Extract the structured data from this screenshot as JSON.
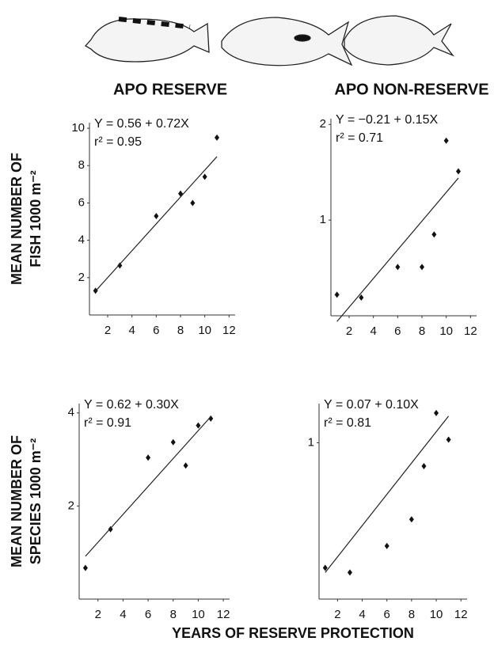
{
  "x_label": "YEARS OF RESERVE PROTECTION",
  "chart_data": [
    {
      "type": "scatter",
      "title": "APO RESERVE",
      "y_label": [
        "MEAN NUMBER OF",
        "FISH  1000 m⁻²"
      ],
      "equation": "Y = 0.56 + 0.72X",
      "r2": "r² = 0.95",
      "fit": {
        "intercept": 0.56,
        "slope": 0.72
      },
      "x": [
        1,
        3,
        6,
        8,
        9,
        10,
        11
      ],
      "values": [
        1.3,
        2.65,
        5.3,
        6.5,
        6.0,
        7.4,
        9.5
      ],
      "color": "#111111",
      "xlim": [
        0.5,
        12.5
      ],
      "ylim": [
        0,
        10.3
      ],
      "xticks": [
        2,
        4,
        6,
        8,
        10,
        12
      ],
      "yticks": [
        2,
        4,
        6,
        8,
        10
      ]
    },
    {
      "type": "scatter",
      "title": "APO NON-RESERVE",
      "equation": "Y = −0.21 + 0.15X",
      "r2": "r² = 0.71",
      "fit": {
        "intercept": -0.21,
        "slope": 0.15
      },
      "x": [
        1,
        3,
        6,
        8,
        9,
        10,
        11
      ],
      "values": [
        0.22,
        0.19,
        0.51,
        0.51,
        0.85,
        1.83,
        1.51
      ],
      "color": "#111111",
      "xlim": [
        0.5,
        12.5
      ],
      "ylim": [
        0,
        2.06
      ],
      "xticks": [
        2,
        4,
        6,
        8,
        10,
        12
      ],
      "yticks": [
        1,
        2
      ]
    },
    {
      "type": "scatter",
      "y_label": [
        "MEAN NUMBER OF",
        "SPECIES  1000 m⁻²"
      ],
      "equation": "Y = 0.62 + 0.30X",
      "r2": "r² = 0.91",
      "fit": {
        "intercept": 0.62,
        "slope": 0.3
      },
      "x": [
        1,
        3,
        6,
        8,
        9,
        10,
        11
      ],
      "values": [
        0.67,
        1.5,
        3.04,
        3.37,
        2.87,
        3.73,
        3.88
      ],
      "color": "#111111",
      "xlim": [
        0.5,
        12.5
      ],
      "ylim": [
        0,
        4.2
      ],
      "xticks": [
        2,
        4,
        6,
        8,
        10,
        12
      ],
      "yticks": [
        2,
        4
      ]
    },
    {
      "type": "scatter",
      "equation": "Y  = 0.07 + 0.10X",
      "r2": "r² = 0.81",
      "fit": {
        "intercept": 0.07,
        "slope": 0.1
      },
      "x": [
        1,
        3,
        6,
        8,
        9,
        10,
        11
      ],
      "values": [
        0.2,
        0.17,
        0.34,
        0.51,
        0.85,
        1.19,
        1.02
      ],
      "color": "#111111",
      "xlim": [
        0.5,
        12.5
      ],
      "ylim": [
        0,
        1.25
      ],
      "xticks": [
        2,
        4,
        6,
        8,
        10,
        12
      ],
      "yticks": [
        1
      ]
    }
  ]
}
